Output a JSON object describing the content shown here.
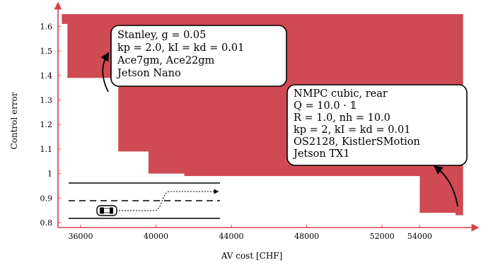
{
  "chart_data": {
    "type": "area",
    "title": "",
    "xlabel": "AV cost [CHF]",
    "ylabel": "Control error",
    "xlim": [
      34800,
      56500
    ],
    "ylim": [
      0.78,
      1.65
    ],
    "xticks": [
      "36000",
      "40000",
      "44000",
      "48000",
      "52000",
      "54000"
    ],
    "yticks": [
      "0.8",
      "0.9",
      "1",
      "1.1",
      "1.2",
      "1.3",
      "1.4",
      "1.5",
      "1.6"
    ],
    "fill_color": "#cf4a53",
    "axis_color": "#d9414b",
    "frontier": {
      "x": [
        35000,
        35300,
        35300,
        37700,
        37700,
        38000,
        38000,
        39600,
        39600,
        41500,
        41500,
        54000,
        54000,
        55900,
        55900,
        56300
      ],
      "y": [
        1.61,
        1.61,
        1.39,
        1.39,
        1.37,
        1.37,
        1.09,
        1.09,
        1.0,
        1.0,
        0.99,
        0.99,
        0.84,
        0.84,
        0.83,
        0.83
      ]
    },
    "annotations": [
      {
        "lines": [
          "Stanley, g = 0.05",
          "kp = 2.0, kI = kd = 0.01",
          "Ace7gm, Ace22gm",
          "Jetson Nano"
        ],
        "point": [
          37900,
          1.36
        ]
      },
      {
        "lines": [
          "NMPC cubic, rear",
          "Q = 10.0 · 𝟙",
          "R = 1.0, nh = 10.0",
          "kp = 2, kI = kd = 0.01",
          "OS2128, KistlerSMotion",
          "Jetson TX1"
        ],
        "point": [
          55900,
          0.84
        ]
      }
    ]
  }
}
